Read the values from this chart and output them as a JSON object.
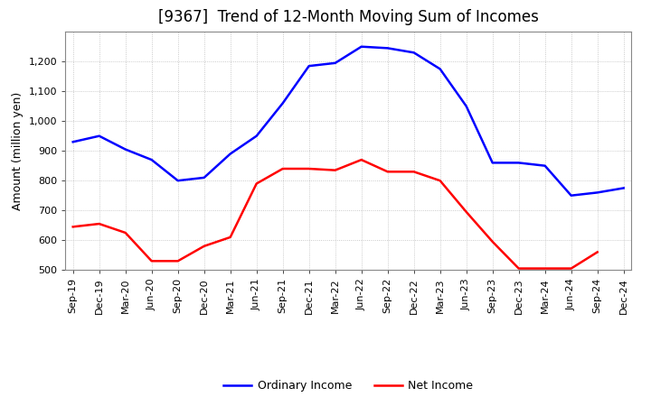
{
  "title": "[9367]  Trend of 12-Month Moving Sum of Incomes",
  "ylabel": "Amount (million yen)",
  "x_labels": [
    "Sep-19",
    "Dec-19",
    "Mar-20",
    "Jun-20",
    "Sep-20",
    "Dec-20",
    "Mar-21",
    "Jun-21",
    "Sep-21",
    "Dec-21",
    "Mar-22",
    "Jun-22",
    "Sep-22",
    "Dec-22",
    "Mar-23",
    "Jun-23",
    "Sep-23",
    "Dec-23",
    "Mar-24",
    "Jun-24",
    "Sep-24",
    "Dec-24"
  ],
  "ordinary_income": [
    930,
    950,
    905,
    870,
    800,
    810,
    890,
    950,
    1060,
    1185,
    1195,
    1250,
    1245,
    1230,
    1175,
    1050,
    860,
    860,
    850,
    750,
    760,
    775
  ],
  "net_income": [
    645,
    655,
    625,
    530,
    530,
    580,
    610,
    790,
    840,
    840,
    835,
    870,
    830,
    830,
    800,
    695,
    595,
    505,
    505,
    505,
    560,
    null
  ],
  "ordinary_color": "#0000FF",
  "net_color": "#FF0000",
  "ylim": [
    500,
    1300
  ],
  "yticks": [
    500,
    600,
    700,
    800,
    900,
    1000,
    1100,
    1200
  ],
  "background_color": "#FFFFFF",
  "grid_color": "#BBBBBB",
  "title_fontsize": 12,
  "axis_fontsize": 8,
  "ylabel_fontsize": 9,
  "legend_labels": [
    "Ordinary Income",
    "Net Income"
  ],
  "line_width": 1.8
}
